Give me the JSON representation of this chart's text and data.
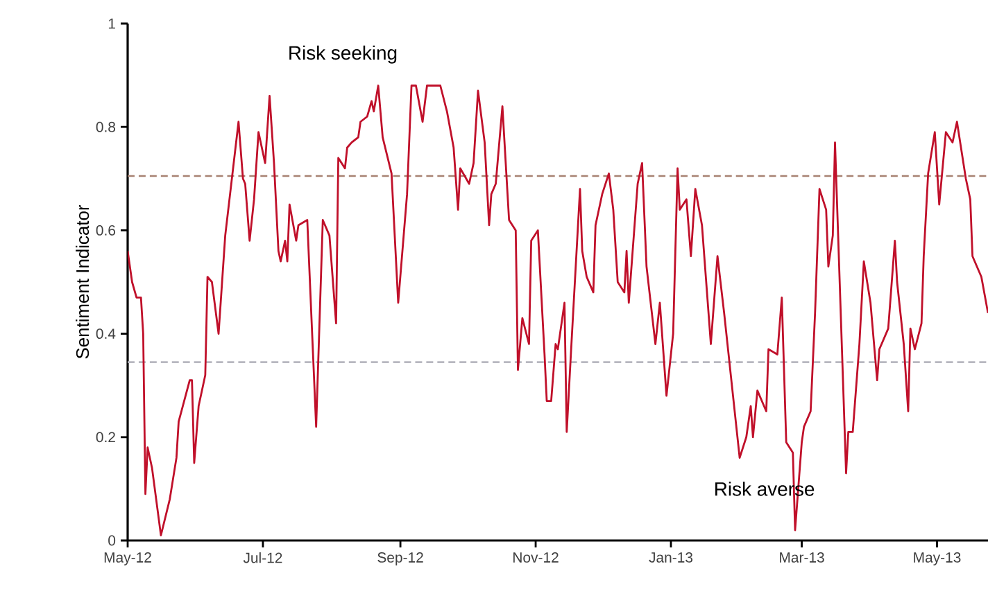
{
  "chart_data": {
    "type": "line",
    "ylabel": "Sentiment Indicator",
    "annotations": [
      "Risk seeking",
      "Risk averse"
    ],
    "xlim": [
      "2012-05-01",
      "2013-05-24"
    ],
    "xticks": [
      {
        "value": "2012-05-01",
        "label": "May-12"
      },
      {
        "value": "2012-07-01",
        "label": "Jul-12"
      },
      {
        "value": "2012-09-01",
        "label": "Sep-12"
      },
      {
        "value": "2012-11-01",
        "label": "Nov-12"
      },
      {
        "value": "2013-01-01",
        "label": "Jan-13"
      },
      {
        "value": "2013-03-01",
        "label": "Mar-13"
      },
      {
        "value": "2013-05-01",
        "label": "May-13"
      }
    ],
    "ylim": [
      0,
      1
    ],
    "yticks": [
      0,
      0.2,
      0.4,
      0.6,
      0.8,
      1
    ],
    "grid": false,
    "marker": "none",
    "line_style": "solid",
    "ref_lines": [
      {
        "axis": "y",
        "value": 0.705,
        "color": "#a88272",
        "line_style": "dashed"
      },
      {
        "axis": "y",
        "value": 0.345,
        "color": "#b8b8c0",
        "line_style": "dashed"
      }
    ],
    "series": [
      {
        "color": "#c0102a",
        "x": [
          "2012-05-01",
          "2012-05-03",
          "2012-05-05",
          "2012-05-07",
          "2012-05-08",
          "2012-05-09",
          "2012-05-10",
          "2012-05-12",
          "2012-05-16",
          "2012-05-20",
          "2012-05-23",
          "2012-05-24",
          "2012-05-29",
          "2012-05-30",
          "2012-05-31",
          "2012-06-02",
          "2012-06-05",
          "2012-06-06",
          "2012-06-08",
          "2012-06-11",
          "2012-06-14",
          "2012-06-20",
          "2012-06-22",
          "2012-06-23",
          "2012-06-25",
          "2012-06-27",
          "2012-06-29",
          "2012-07-02",
          "2012-07-04",
          "2012-07-06",
          "2012-07-08",
          "2012-07-09",
          "2012-07-11",
          "2012-07-12",
          "2012-07-13",
          "2012-07-16",
          "2012-07-17",
          "2012-07-21",
          "2012-07-25",
          "2012-07-28",
          "2012-07-31",
          "2012-08-03",
          "2012-08-04",
          "2012-08-07",
          "2012-08-08",
          "2012-08-10",
          "2012-08-13",
          "2012-08-14",
          "2012-08-17",
          "2012-08-19",
          "2012-08-20",
          "2012-08-22",
          "2012-08-24",
          "2012-08-28",
          "2012-08-31",
          "2012-09-04",
          "2012-09-06",
          "2012-09-08",
          "2012-09-11",
          "2012-09-13",
          "2012-09-19",
          "2012-09-22",
          "2012-09-25",
          "2012-09-27",
          "2012-09-28",
          "2012-10-02",
          "2012-10-04",
          "2012-10-06",
          "2012-10-09",
          "2012-10-11",
          "2012-10-12",
          "2012-10-14",
          "2012-10-17",
          "2012-10-20",
          "2012-10-23",
          "2012-10-24",
          "2012-10-26",
          "2012-10-29",
          "2012-10-30",
          "2012-11-02",
          "2012-11-05",
          "2012-11-06",
          "2012-11-08",
          "2012-11-10",
          "2012-11-11",
          "2012-11-14",
          "2012-11-15",
          "2012-11-17",
          "2012-11-21",
          "2012-11-22",
          "2012-11-24",
          "2012-11-27",
          "2012-11-28",
          "2012-12-01",
          "2012-12-04",
          "2012-12-06",
          "2012-12-08",
          "2012-12-11",
          "2012-12-12",
          "2012-12-13",
          "2012-12-17",
          "2012-12-19",
          "2012-12-21",
          "2012-12-25",
          "2012-12-27",
          "2012-12-30",
          "2013-01-02",
          "2013-01-04",
          "2013-01-05",
          "2013-01-08",
          "2013-01-10",
          "2013-01-12",
          "2013-01-15",
          "2013-01-19",
          "2013-01-22",
          "2013-01-25",
          "2013-02-01",
          "2013-02-04",
          "2013-02-06",
          "2013-02-07",
          "2013-02-09",
          "2013-02-13",
          "2013-02-14",
          "2013-02-18",
          "2013-02-20",
          "2013-02-22",
          "2013-02-25",
          "2013-02-26",
          "2013-03-01",
          "2013-03-02",
          "2013-03-05",
          "2013-03-07",
          "2013-03-09",
          "2013-03-12",
          "2013-03-13",
          "2013-03-15",
          "2013-03-16",
          "2013-03-21",
          "2013-03-22",
          "2013-03-24",
          "2013-03-27",
          "2013-03-29",
          "2013-04-01",
          "2013-04-04",
          "2013-04-05",
          "2013-04-09",
          "2013-04-12",
          "2013-04-13",
          "2013-04-16",
          "2013-04-18",
          "2013-04-19",
          "2013-04-21",
          "2013-04-24",
          "2013-04-25",
          "2013-04-27",
          "2013-04-30",
          "2013-05-02",
          "2013-05-05",
          "2013-05-08",
          "2013-05-10",
          "2013-05-14",
          "2013-05-16",
          "2013-05-17",
          "2013-05-21",
          "2013-05-24"
        ],
        "values": [
          0.56,
          0.5,
          0.47,
          0.47,
          0.4,
          0.09,
          0.18,
          0.14,
          0.01,
          0.08,
          0.16,
          0.23,
          0.31,
          0.31,
          0.15,
          0.26,
          0.32,
          0.51,
          0.5,
          0.4,
          0.59,
          0.81,
          0.7,
          0.69,
          0.58,
          0.66,
          0.79,
          0.73,
          0.86,
          0.73,
          0.56,
          0.54,
          0.58,
          0.54,
          0.65,
          0.58,
          0.61,
          0.62,
          0.22,
          0.62,
          0.59,
          0.42,
          0.74,
          0.72,
          0.76,
          0.77,
          0.78,
          0.81,
          0.82,
          0.85,
          0.83,
          0.88,
          0.78,
          0.71,
          0.46,
          0.67,
          0.88,
          0.88,
          0.81,
          0.88,
          0.88,
          0.83,
          0.76,
          0.64,
          0.72,
          0.69,
          0.73,
          0.87,
          0.77,
          0.61,
          0.67,
          0.69,
          0.84,
          0.62,
          0.6,
          0.33,
          0.43,
          0.38,
          0.58,
          0.6,
          0.36,
          0.27,
          0.27,
          0.38,
          0.37,
          0.46,
          0.21,
          0.37,
          0.68,
          0.56,
          0.51,
          0.48,
          0.61,
          0.67,
          0.71,
          0.64,
          0.5,
          0.48,
          0.56,
          0.46,
          0.69,
          0.73,
          0.53,
          0.38,
          0.46,
          0.28,
          0.4,
          0.72,
          0.64,
          0.66,
          0.55,
          0.68,
          0.61,
          0.38,
          0.55,
          0.44,
          0.16,
          0.2,
          0.26,
          0.2,
          0.29,
          0.25,
          0.37,
          0.36,
          0.47,
          0.19,
          0.17,
          0.02,
          0.19,
          0.22,
          0.25,
          0.44,
          0.68,
          0.64,
          0.53,
          0.59,
          0.77,
          0.13,
          0.21,
          0.21,
          0.38,
          0.54,
          0.46,
          0.31,
          0.37,
          0.41,
          0.58,
          0.5,
          0.38,
          0.25,
          0.41,
          0.37,
          0.42,
          0.55,
          0.71,
          0.79,
          0.65,
          0.79,
          0.77,
          0.81,
          0.7,
          0.66,
          0.55,
          0.51,
          0.44
        ]
      }
    ]
  }
}
